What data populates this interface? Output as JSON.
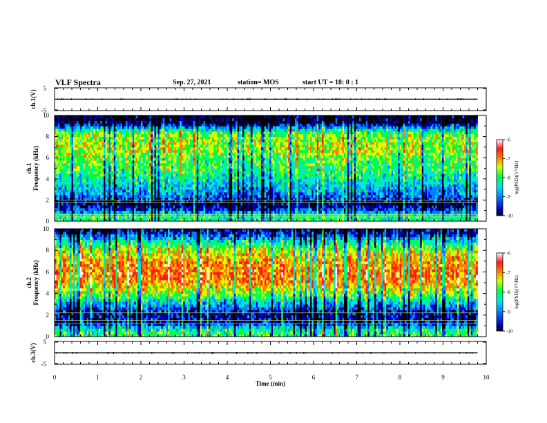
{
  "header": {
    "title": "VLF Spectra",
    "date": "Sep. 27, 2021",
    "station": "station= MOS",
    "start": "start UT = 18: 0 : 1"
  },
  "colors": {
    "spectrogram_scale": [
      "#000000",
      "#0000c8",
      "#0080ff",
      "#00e5e5",
      "#00ff40",
      "#d8ff00",
      "#ff8000",
      "#ff1a1a",
      "#ffffff"
    ]
  },
  "chart_data": [
    {
      "type": "line",
      "panel": "ch1-waveform",
      "ylabel": "ch.1(V)",
      "ylim": [
        -5,
        5
      ],
      "yticks": [
        "5",
        "-5"
      ],
      "xlim": [
        0,
        10
      ],
      "series": [
        {
          "x": [
            0,
            9.8
          ],
          "y": [
            0,
            0
          ]
        }
      ]
    },
    {
      "type": "heatmap",
      "panel": "ch1-spectrogram",
      "ylabel": "ch.1 Frequency (kHz)",
      "ylim": [
        0,
        10
      ],
      "yticks": [
        "0",
        "2",
        "4",
        "6",
        "8",
        "10"
      ],
      "xlim": [
        0,
        9.8
      ],
      "colorbar": {
        "label": "log(PSD)(V²/Hz)",
        "ticks": [
          "-6",
          "-7",
          "-8",
          "-9",
          "-10"
        ],
        "range": [
          -10,
          -6
        ]
      },
      "band_profile": {
        "freq_khz": [
          0.25,
          0.75,
          1.25,
          1.75,
          2.25,
          2.75,
          3.25,
          3.75,
          4.25,
          4.75,
          5.25,
          5.75,
          6.25,
          6.75,
          7.25,
          7.75,
          8.25,
          8.75,
          9.25,
          9.75
        ],
        "mean_log_psd": [
          -8.2,
          -8.6,
          -9.6,
          -9.7,
          -9.2,
          -8.9,
          -8.7,
          -8.5,
          -8.3,
          -8.1,
          -8.0,
          -7.9,
          -7.8,
          -7.6,
          -7.6,
          -7.7,
          -7.8,
          -8.6,
          -9.8,
          -10.0
        ]
      },
      "lines_khz": [
        0.4,
        0.6,
        1.8,
        2.0
      ]
    },
    {
      "type": "heatmap",
      "panel": "ch2-spectrogram",
      "ylabel": "ch.2 Frequency (kHz)",
      "ylim": [
        0,
        10
      ],
      "yticks": [
        "0",
        "2",
        "4",
        "6",
        "8",
        "10"
      ],
      "xlim": [
        0,
        9.8
      ],
      "colorbar": {
        "label": "log(PSD)(V²/Hz)",
        "ticks": [
          "-6",
          "-7",
          "-8",
          "-9",
          "-10"
        ],
        "range": [
          -10,
          -6
        ]
      },
      "band_profile": {
        "freq_khz": [
          0.25,
          0.75,
          1.25,
          1.75,
          2.25,
          2.75,
          3.25,
          3.75,
          4.25,
          4.75,
          5.25,
          5.75,
          6.25,
          6.75,
          7.25,
          7.75,
          8.25,
          8.75,
          9.25,
          9.75
        ],
        "mean_log_psd": [
          -8.0,
          -8.4,
          -9.4,
          -9.6,
          -9.5,
          -9.0,
          -8.6,
          -8.0,
          -7.6,
          -7.2,
          -7.0,
          -6.9,
          -6.9,
          -7.0,
          -7.2,
          -7.4,
          -7.8,
          -8.3,
          -9.0,
          -9.6
        ]
      },
      "lines_khz": [
        1.2,
        1.5,
        2.2
      ]
    },
    {
      "type": "line",
      "panel": "ch3-waveform",
      "ylabel": "ch.3(V)",
      "ylim": [
        -5,
        5
      ],
      "yticks": [
        "5",
        "-5"
      ],
      "xlim": [
        0,
        10
      ],
      "xlabel": "Time (min)",
      "xticks": [
        "0",
        "1",
        "2",
        "3",
        "4",
        "5",
        "6",
        "7",
        "8",
        "9",
        "10"
      ],
      "series": [
        {
          "x": [
            0,
            9.8
          ],
          "y": [
            0,
            0
          ]
        }
      ]
    }
  ]
}
